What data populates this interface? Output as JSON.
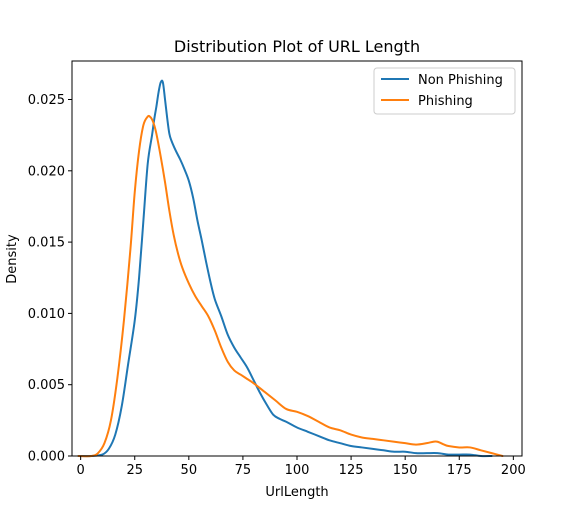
{
  "chart_data": {
    "type": "line",
    "title": "Distribution Plot of URL Length",
    "xlabel": "UrlLength",
    "ylabel": "Density",
    "xlim": [
      -4,
      204
    ],
    "ylim": [
      0,
      0.0277
    ],
    "xticks": [
      "0",
      "25",
      "50",
      "75",
      "100",
      "125",
      "150",
      "175",
      "200"
    ],
    "yticks": [
      "0.000",
      "0.005",
      "0.010",
      "0.015",
      "0.020",
      "0.025"
    ],
    "grid": false,
    "legend_position": "top-right",
    "series": [
      {
        "name": "Non Phishing",
        "color": "#1f77b4",
        "x": [
          -1,
          5,
          10,
          13,
          16,
          19,
          22,
          25,
          27,
          29,
          31,
          33,
          34,
          35,
          36,
          37,
          38,
          39,
          40,
          41,
          42,
          44,
          46,
          48,
          50,
          52,
          54,
          56,
          58,
          60,
          62,
          65,
          68,
          71,
          74,
          77,
          80,
          83,
          86,
          89,
          92,
          95,
          100,
          105,
          110,
          115,
          120,
          125,
          130,
          135,
          140,
          145,
          150,
          155,
          160,
          165,
          170,
          175,
          180,
          185,
          190
        ],
        "y": [
          0.0,
          0.0,
          0.0001,
          0.0005,
          0.0015,
          0.0035,
          0.0065,
          0.0095,
          0.0125,
          0.0165,
          0.0205,
          0.0225,
          0.0236,
          0.0245,
          0.0255,
          0.0262,
          0.0262,
          0.025,
          0.0237,
          0.0226,
          0.0221,
          0.0214,
          0.0208,
          0.0201,
          0.0193,
          0.0181,
          0.0165,
          0.0151,
          0.0136,
          0.0122,
          0.011,
          0.0098,
          0.0085,
          0.0076,
          0.0069,
          0.0062,
          0.0053,
          0.0044,
          0.0036,
          0.0029,
          0.0026,
          0.0024,
          0.002,
          0.0017,
          0.0014,
          0.0011,
          0.0009,
          0.0007,
          0.0006,
          0.0005,
          0.0004,
          0.0003,
          0.0003,
          0.0002,
          0.0002,
          0.0002,
          0.0001,
          0.0001,
          0.0001,
          0.0,
          0.0
        ]
      },
      {
        "name": "Phishing",
        "color": "#ff7f0e",
        "x": [
          -1,
          5,
          8,
          11,
          14,
          17,
          20,
          23,
          25,
          27,
          29,
          31,
          32,
          33,
          34,
          35,
          37,
          39,
          41,
          43,
          45,
          47,
          50,
          53,
          56,
          59,
          62,
          65,
          68,
          71,
          74,
          77,
          80,
          85,
          90,
          95,
          100,
          105,
          110,
          115,
          120,
          125,
          130,
          135,
          140,
          145,
          150,
          155,
          160,
          163,
          165,
          168,
          170,
          175,
          180,
          185,
          190,
          195
        ],
        "y": [
          0.0,
          0.0,
          0.0002,
          0.0009,
          0.0025,
          0.0055,
          0.0095,
          0.0145,
          0.0185,
          0.0214,
          0.0232,
          0.0238,
          0.0238,
          0.0236,
          0.0232,
          0.0226,
          0.021,
          0.0192,
          0.0172,
          0.0155,
          0.0142,
          0.0132,
          0.0121,
          0.0112,
          0.0105,
          0.0098,
          0.0088,
          0.0076,
          0.0066,
          0.006,
          0.0057,
          0.0054,
          0.0051,
          0.0045,
          0.0039,
          0.0033,
          0.0031,
          0.0028,
          0.0024,
          0.002,
          0.0018,
          0.0015,
          0.0013,
          0.0012,
          0.0011,
          0.001,
          0.0009,
          0.0008,
          0.0009,
          0.001,
          0.001,
          0.0008,
          0.0007,
          0.0006,
          0.0006,
          0.0004,
          0.0002,
          0.0
        ]
      }
    ]
  }
}
